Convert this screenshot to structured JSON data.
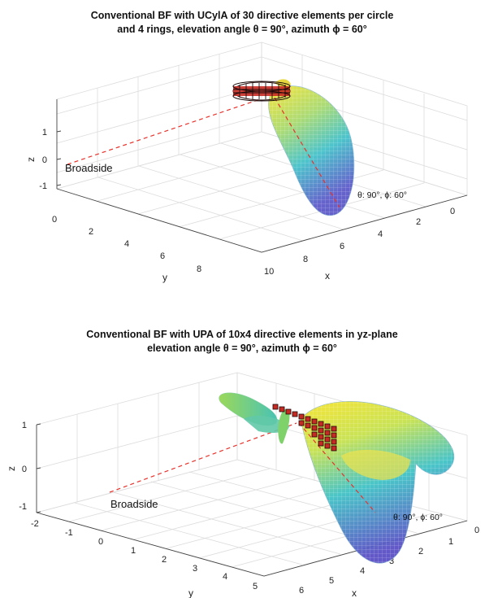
{
  "chart_data": [
    {
      "type": "3d-surface",
      "title_line1": "Conventional BF with UCylA of 30 directive elements per circle",
      "title_line2": "and 4 rings, elevation angle θ = 90°, azimuth ϕ = 60°",
      "xlabel": "x",
      "ylabel": "y",
      "zlabel": "z",
      "x_ticks": [
        "2",
        "4",
        "6",
        "8",
        "10"
      ],
      "y_ticks": [
        "0",
        "2",
        "4",
        "6",
        "8"
      ],
      "z_ticks": [
        "1",
        "0",
        "-1"
      ],
      "x_zero_tick": "0",
      "annotations": {
        "broadside": "Broadside",
        "steer_label": "θ: 90°, ϕ: 60°"
      },
      "array": {
        "elements_per_circle": 30,
        "rings": 4
      },
      "steering": {
        "elevation_deg": 90,
        "azimuth_deg": 60
      },
      "colors": {
        "beam_low": "#3b4cc0",
        "beam_high": "#f6e32b",
        "dashed_line": "#e8322b",
        "element_fill": "#c62a22"
      }
    },
    {
      "type": "3d-surface",
      "title_line1": "Conventional BF with UPA of 10x4 directive elements in yz-plane",
      "title_line2": "elevation angle θ = 90°, azimuth ϕ = 60°",
      "xlabel": "x",
      "ylabel": "y",
      "zlabel": "z",
      "x_ticks": [
        "0",
        "1",
        "2",
        "3",
        "4",
        "5",
        "6"
      ],
      "y_ticks": [
        "-2",
        "-1",
        "0",
        "1",
        "2",
        "3",
        "4",
        "5"
      ],
      "z_ticks": [
        "1",
        "0",
        "-1"
      ],
      "annotations": {
        "broadside": "Broadside",
        "steer_label": "θ: 90°, ϕ: 60°"
      },
      "array": {
        "rows": 10,
        "columns": 4,
        "plane": "yz"
      },
      "steering": {
        "elevation_deg": 90,
        "azimuth_deg": 60
      },
      "colors": {
        "beam_low": "#3b4cc0",
        "beam_high": "#f6e32b",
        "dashed_line": "#e8322b",
        "element_fill": "#c62a22"
      }
    }
  ]
}
